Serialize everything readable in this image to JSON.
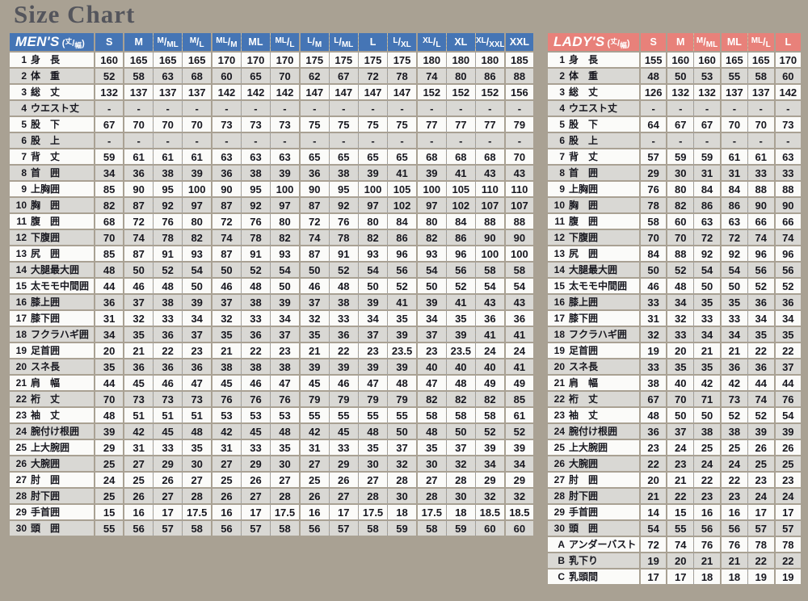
{
  "page": {
    "title": "Size Chart",
    "background": "#a9a193",
    "title_color": "#54555c"
  },
  "chart_data": [
    {
      "type": "table",
      "title": "MEN'S",
      "unit_note": "丈/幅",
      "theme_color": "#4575b5",
      "columns": [
        "S",
        "M",
        "M/ML",
        "M/L",
        "ML/M",
        "ML",
        "ML/L",
        "L/M",
        "L/ML",
        "L",
        "L/XL",
        "XL/L",
        "XL",
        "XL/XXL",
        "XXL"
      ],
      "solid_column_starts": [
        0,
        1,
        4,
        7,
        11,
        14
      ],
      "rows": [
        {
          "no": "1",
          "label": "身　長",
          "values": [
            "160",
            "165",
            "165",
            "165",
            "170",
            "170",
            "170",
            "175",
            "175",
            "175",
            "175",
            "180",
            "180",
            "180",
            "185"
          ]
        },
        {
          "no": "2",
          "label": "体　重",
          "values": [
            "52",
            "58",
            "63",
            "68",
            "60",
            "65",
            "70",
            "62",
            "67",
            "72",
            "78",
            "74",
            "80",
            "86",
            "88"
          ]
        },
        {
          "no": "3",
          "label": "総　丈",
          "values": [
            "132",
            "137",
            "137",
            "137",
            "142",
            "142",
            "142",
            "147",
            "147",
            "147",
            "147",
            "152",
            "152",
            "152",
            "156"
          ]
        },
        {
          "no": "4",
          "label": "ウエスト丈",
          "values": [
            "-",
            "-",
            "-",
            "-",
            "-",
            "-",
            "-",
            "-",
            "-",
            "-",
            "-",
            "-",
            "-",
            "-",
            "-"
          ]
        },
        {
          "no": "5",
          "label": "股　下",
          "values": [
            "67",
            "70",
            "70",
            "70",
            "73",
            "73",
            "73",
            "75",
            "75",
            "75",
            "75",
            "77",
            "77",
            "77",
            "79"
          ]
        },
        {
          "no": "6",
          "label": "股　上",
          "values": [
            "-",
            "-",
            "-",
            "-",
            "-",
            "-",
            "-",
            "-",
            "-",
            "-",
            "-",
            "-",
            "-",
            "-",
            "-"
          ]
        },
        {
          "no": "7",
          "label": "背　丈",
          "values": [
            "59",
            "61",
            "61",
            "61",
            "63",
            "63",
            "63",
            "65",
            "65",
            "65",
            "65",
            "68",
            "68",
            "68",
            "70"
          ]
        },
        {
          "no": "8",
          "label": "首　囲",
          "values": [
            "34",
            "36",
            "38",
            "39",
            "36",
            "38",
            "39",
            "36",
            "38",
            "39",
            "41",
            "39",
            "41",
            "43",
            "43"
          ]
        },
        {
          "no": "9",
          "label": "上胸囲",
          "values": [
            "85",
            "90",
            "95",
            "100",
            "90",
            "95",
            "100",
            "90",
            "95",
            "100",
            "105",
            "100",
            "105",
            "110",
            "110"
          ]
        },
        {
          "no": "10",
          "label": "胸　囲",
          "values": [
            "82",
            "87",
            "92",
            "97",
            "87",
            "92",
            "97",
            "87",
            "92",
            "97",
            "102",
            "97",
            "102",
            "107",
            "107"
          ]
        },
        {
          "no": "11",
          "label": "腹　囲",
          "values": [
            "68",
            "72",
            "76",
            "80",
            "72",
            "76",
            "80",
            "72",
            "76",
            "80",
            "84",
            "80",
            "84",
            "88",
            "88"
          ]
        },
        {
          "no": "12",
          "label": "下腹囲",
          "values": [
            "70",
            "74",
            "78",
            "82",
            "74",
            "78",
            "82",
            "74",
            "78",
            "82",
            "86",
            "82",
            "86",
            "90",
            "90"
          ]
        },
        {
          "no": "13",
          "label": "尻　囲",
          "values": [
            "85",
            "87",
            "91",
            "93",
            "87",
            "91",
            "93",
            "87",
            "91",
            "93",
            "96",
            "93",
            "96",
            "100",
            "100"
          ]
        },
        {
          "no": "14",
          "label": "大腿最大囲",
          "values": [
            "48",
            "50",
            "52",
            "54",
            "50",
            "52",
            "54",
            "50",
            "52",
            "54",
            "56",
            "54",
            "56",
            "58",
            "58"
          ]
        },
        {
          "no": "15",
          "label": "太モモ中間囲",
          "values": [
            "44",
            "46",
            "48",
            "50",
            "46",
            "48",
            "50",
            "46",
            "48",
            "50",
            "52",
            "50",
            "52",
            "54",
            "54"
          ]
        },
        {
          "no": "16",
          "label": "膝上囲",
          "values": [
            "36",
            "37",
            "38",
            "39",
            "37",
            "38",
            "39",
            "37",
            "38",
            "39",
            "41",
            "39",
            "41",
            "43",
            "43"
          ]
        },
        {
          "no": "17",
          "label": "膝下囲",
          "values": [
            "31",
            "32",
            "33",
            "34",
            "32",
            "33",
            "34",
            "32",
            "33",
            "34",
            "35",
            "34",
            "35",
            "36",
            "36"
          ]
        },
        {
          "no": "18",
          "label": "フクラハギ囲",
          "values": [
            "34",
            "35",
            "36",
            "37",
            "35",
            "36",
            "37",
            "35",
            "36",
            "37",
            "39",
            "37",
            "39",
            "41",
            "41"
          ]
        },
        {
          "no": "19",
          "label": "足首囲",
          "values": [
            "20",
            "21",
            "22",
            "23",
            "21",
            "22",
            "23",
            "21",
            "22",
            "23",
            "23.5",
            "23",
            "23.5",
            "24",
            "24"
          ]
        },
        {
          "no": "20",
          "label": "スネ長",
          "values": [
            "35",
            "36",
            "36",
            "36",
            "38",
            "38",
            "38",
            "39",
            "39",
            "39",
            "39",
            "40",
            "40",
            "40",
            "41"
          ]
        },
        {
          "no": "21",
          "label": "肩　幅",
          "values": [
            "44",
            "45",
            "46",
            "47",
            "45",
            "46",
            "47",
            "45",
            "46",
            "47",
            "48",
            "47",
            "48",
            "49",
            "49"
          ]
        },
        {
          "no": "22",
          "label": "裄　丈",
          "values": [
            "70",
            "73",
            "73",
            "73",
            "76",
            "76",
            "76",
            "79",
            "79",
            "79",
            "79",
            "82",
            "82",
            "82",
            "85"
          ]
        },
        {
          "no": "23",
          "label": "袖　丈",
          "values": [
            "48",
            "51",
            "51",
            "51",
            "53",
            "53",
            "53",
            "55",
            "55",
            "55",
            "55",
            "58",
            "58",
            "58",
            "61"
          ]
        },
        {
          "no": "24",
          "label": "腕付け根囲",
          "values": [
            "39",
            "42",
            "45",
            "48",
            "42",
            "45",
            "48",
            "42",
            "45",
            "48",
            "50",
            "48",
            "50",
            "52",
            "52"
          ]
        },
        {
          "no": "25",
          "label": "上大腕囲",
          "values": [
            "29",
            "31",
            "33",
            "35",
            "31",
            "33",
            "35",
            "31",
            "33",
            "35",
            "37",
            "35",
            "37",
            "39",
            "39"
          ]
        },
        {
          "no": "26",
          "label": "大腕囲",
          "values": [
            "25",
            "27",
            "29",
            "30",
            "27",
            "29",
            "30",
            "27",
            "29",
            "30",
            "32",
            "30",
            "32",
            "34",
            "34"
          ]
        },
        {
          "no": "27",
          "label": "肘　囲",
          "values": [
            "24",
            "25",
            "26",
            "27",
            "25",
            "26",
            "27",
            "25",
            "26",
            "27",
            "28",
            "27",
            "28",
            "29",
            "29"
          ]
        },
        {
          "no": "28",
          "label": "肘下囲",
          "values": [
            "25",
            "26",
            "27",
            "28",
            "26",
            "27",
            "28",
            "26",
            "27",
            "28",
            "30",
            "28",
            "30",
            "32",
            "32"
          ]
        },
        {
          "no": "29",
          "label": "手首囲",
          "values": [
            "15",
            "16",
            "17",
            "17.5",
            "16",
            "17",
            "17.5",
            "16",
            "17",
            "17.5",
            "18",
            "17.5",
            "18",
            "18.5",
            "18.5"
          ]
        },
        {
          "no": "30",
          "label": "頭　囲",
          "values": [
            "55",
            "56",
            "57",
            "58",
            "56",
            "57",
            "58",
            "56",
            "57",
            "58",
            "59",
            "58",
            "59",
            "60",
            "60"
          ]
        }
      ]
    },
    {
      "type": "table",
      "title": "LADY'S",
      "unit_note": "丈/幅",
      "theme_color": "#e8817a",
      "columns": [
        "S",
        "M",
        "M/ML",
        "ML",
        "ML/L",
        "L"
      ],
      "solid_column_starts": [
        0,
        1,
        3,
        5
      ],
      "rows": [
        {
          "no": "1",
          "label": "身　長",
          "values": [
            "155",
            "160",
            "160",
            "165",
            "165",
            "170"
          ]
        },
        {
          "no": "2",
          "label": "体　重",
          "values": [
            "48",
            "50",
            "53",
            "55",
            "58",
            "60"
          ]
        },
        {
          "no": "3",
          "label": "総　丈",
          "values": [
            "126",
            "132",
            "132",
            "137",
            "137",
            "142"
          ]
        },
        {
          "no": "4",
          "label": "ウエスト丈",
          "values": [
            "-",
            "-",
            "-",
            "-",
            "-",
            "-"
          ]
        },
        {
          "no": "5",
          "label": "股　下",
          "values": [
            "64",
            "67",
            "67",
            "70",
            "70",
            "73"
          ]
        },
        {
          "no": "6",
          "label": "股　上",
          "values": [
            "-",
            "-",
            "-",
            "-",
            "-",
            "-"
          ]
        },
        {
          "no": "7",
          "label": "背　丈",
          "values": [
            "57",
            "59",
            "59",
            "61",
            "61",
            "63"
          ]
        },
        {
          "no": "8",
          "label": "首　囲",
          "values": [
            "29",
            "30",
            "31",
            "31",
            "33",
            "33"
          ]
        },
        {
          "no": "9",
          "label": "上胸囲",
          "values": [
            "76",
            "80",
            "84",
            "84",
            "88",
            "88"
          ]
        },
        {
          "no": "10",
          "label": "胸　囲",
          "values": [
            "78",
            "82",
            "86",
            "86",
            "90",
            "90"
          ]
        },
        {
          "no": "11",
          "label": "腹　囲",
          "values": [
            "58",
            "60",
            "63",
            "63",
            "66",
            "66"
          ]
        },
        {
          "no": "12",
          "label": "下腹囲",
          "values": [
            "70",
            "70",
            "72",
            "72",
            "74",
            "74"
          ]
        },
        {
          "no": "13",
          "label": "尻　囲",
          "values": [
            "84",
            "88",
            "92",
            "92",
            "96",
            "96"
          ]
        },
        {
          "no": "14",
          "label": "大腿最大囲",
          "values": [
            "50",
            "52",
            "54",
            "54",
            "56",
            "56"
          ]
        },
        {
          "no": "15",
          "label": "太モモ中間囲",
          "values": [
            "46",
            "48",
            "50",
            "50",
            "52",
            "52"
          ]
        },
        {
          "no": "16",
          "label": "膝上囲",
          "values": [
            "33",
            "34",
            "35",
            "35",
            "36",
            "36"
          ]
        },
        {
          "no": "17",
          "label": "膝下囲",
          "values": [
            "31",
            "32",
            "33",
            "33",
            "34",
            "34"
          ]
        },
        {
          "no": "18",
          "label": "フクラハギ囲",
          "values": [
            "32",
            "33",
            "34",
            "34",
            "35",
            "35"
          ]
        },
        {
          "no": "19",
          "label": "足首囲",
          "values": [
            "19",
            "20",
            "21",
            "21",
            "22",
            "22"
          ]
        },
        {
          "no": "20",
          "label": "スネ長",
          "values": [
            "33",
            "35",
            "35",
            "36",
            "36",
            "37"
          ]
        },
        {
          "no": "21",
          "label": "肩　幅",
          "values": [
            "38",
            "40",
            "42",
            "42",
            "44",
            "44"
          ]
        },
        {
          "no": "22",
          "label": "裄　丈",
          "values": [
            "67",
            "70",
            "71",
            "73",
            "74",
            "76"
          ]
        },
        {
          "no": "23",
          "label": "袖　丈",
          "values": [
            "48",
            "50",
            "50",
            "52",
            "52",
            "54"
          ]
        },
        {
          "no": "24",
          "label": "腕付け根囲",
          "values": [
            "36",
            "37",
            "38",
            "38",
            "39",
            "39"
          ]
        },
        {
          "no": "25",
          "label": "上大腕囲",
          "values": [
            "23",
            "24",
            "25",
            "25",
            "26",
            "26"
          ]
        },
        {
          "no": "26",
          "label": "大腕囲",
          "values": [
            "22",
            "23",
            "24",
            "24",
            "25",
            "25"
          ]
        },
        {
          "no": "27",
          "label": "肘　囲",
          "values": [
            "20",
            "21",
            "22",
            "22",
            "23",
            "23"
          ]
        },
        {
          "no": "28",
          "label": "肘下囲",
          "values": [
            "21",
            "22",
            "23",
            "23",
            "24",
            "24"
          ]
        },
        {
          "no": "29",
          "label": "手首囲",
          "values": [
            "14",
            "15",
            "16",
            "16",
            "17",
            "17"
          ]
        },
        {
          "no": "30",
          "label": "頭　囲",
          "values": [
            "54",
            "55",
            "56",
            "56",
            "57",
            "57"
          ]
        },
        {
          "no": "A",
          "label": "アンダーバスト",
          "values": [
            "72",
            "74",
            "76",
            "76",
            "78",
            "78"
          ]
        },
        {
          "no": "B",
          "label": "乳下り",
          "values": [
            "19",
            "20",
            "21",
            "21",
            "22",
            "22"
          ]
        },
        {
          "no": "C",
          "label": "乳頭間",
          "values": [
            "17",
            "17",
            "18",
            "18",
            "19",
            "19"
          ]
        }
      ]
    }
  ]
}
